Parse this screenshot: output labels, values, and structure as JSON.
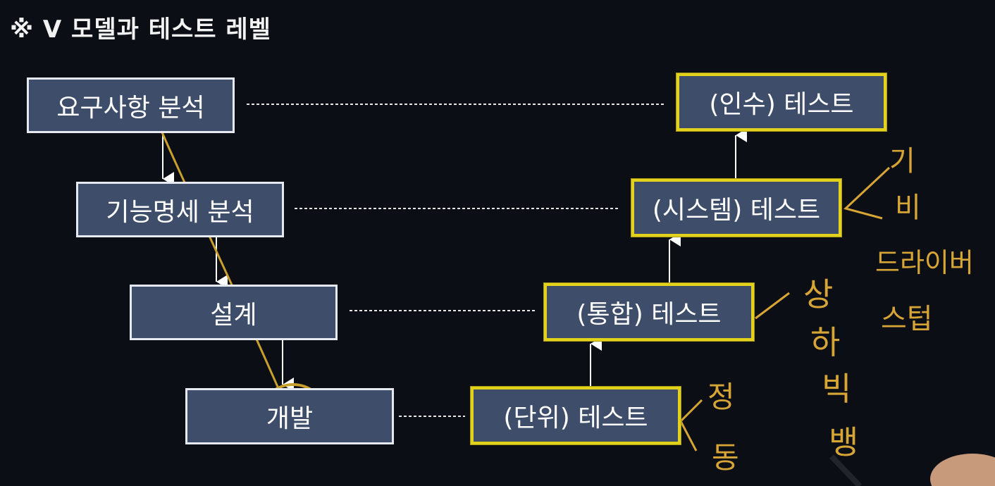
{
  "title": "※ V 모델과 테스트 레벨",
  "development": {
    "requirements": "요구사항 분석",
    "functional_spec": "기능명세 분석",
    "design": "설계",
    "development": "개발"
  },
  "testing": {
    "acceptance": "(인수) 테스트",
    "system": "(시스템) 테스트",
    "integration": "(통합) 테스트",
    "unit": "(단위) 테스트"
  },
  "handwriting": {
    "system_note": [
      "기",
      "비"
    ],
    "driver": "드라이버",
    "stub": "스텁",
    "integration_note": [
      "상",
      "하",
      "빅",
      "뱅"
    ],
    "unit_note": [
      "정",
      "동"
    ]
  },
  "colors": {
    "background": "#0c0e16",
    "box_fill": "#3e4d69",
    "dev_border": "#e6e9ef",
    "test_border": "#e2d21c",
    "annotation": "#d6a536"
  }
}
